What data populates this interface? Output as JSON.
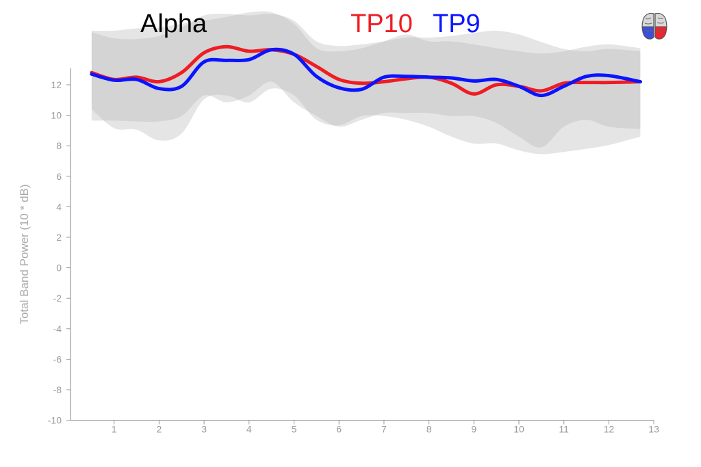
{
  "chart_data": {
    "type": "line",
    "title": "Alpha",
    "xlabel": "",
    "ylabel": "Total Band Power (10 * dB)",
    "xlim": [
      0,
      13
    ],
    "ylim": [
      -10,
      14
    ],
    "xticks": [
      1,
      2,
      3,
      4,
      5,
      6,
      7,
      8,
      9,
      10,
      11,
      12,
      13
    ],
    "yticks": [
      -10,
      -8,
      -6,
      -4,
      -2,
      0,
      2,
      4,
      6,
      8,
      10,
      12
    ],
    "grid": false,
    "legend_placement": "top-center",
    "x": [
      0.5,
      1,
      1.5,
      2,
      2.5,
      3,
      3.5,
      4,
      4.5,
      5,
      5.5,
      6,
      6.5,
      7,
      7.5,
      8,
      8.5,
      9,
      9.5,
      10,
      10.5,
      11,
      11.5,
      12,
      12.7
    ],
    "series": [
      {
        "name": "TP10",
        "color": "#ee1c24",
        "values": [
          12.8,
          12.35,
          12.5,
          12.2,
          12.8,
          14.1,
          14.5,
          14.2,
          14.3,
          14.0,
          13.2,
          12.35,
          12.1,
          12.2,
          12.4,
          12.5,
          12.1,
          11.4,
          12.0,
          11.9,
          11.6,
          12.1,
          12.15,
          12.15,
          12.2
        ],
        "band_upper": [
          15.45,
          15.05,
          15.0,
          15.2,
          15.75,
          16.55,
          16.65,
          16.55,
          16.65,
          16.2,
          14.85,
          14.55,
          14.65,
          14.85,
          15.1,
          15.1,
          15.2,
          15.4,
          15.55,
          15.3,
          14.8,
          14.35,
          14.2,
          14.35,
          14.2
        ],
        "band_lower": [
          10.4,
          9.15,
          9.05,
          8.35,
          8.8,
          11.05,
          11.3,
          10.85,
          11.75,
          11.3,
          9.7,
          9.35,
          9.95,
          9.95,
          9.7,
          9.25,
          8.6,
          8.15,
          8.15,
          7.7,
          7.45,
          7.6,
          7.8,
          8.05,
          8.6
        ]
      },
      {
        "name": "TP9",
        "color": "#0a14ff",
        "values": [
          12.7,
          12.3,
          12.35,
          11.75,
          11.9,
          13.5,
          13.6,
          13.65,
          14.3,
          14.0,
          12.55,
          11.8,
          11.7,
          12.5,
          12.55,
          12.5,
          12.45,
          12.25,
          12.35,
          11.9,
          11.3,
          11.9,
          12.55,
          12.6,
          12.2
        ],
        "band_upper": [
          15.55,
          15.55,
          15.7,
          15.75,
          16.0,
          16.2,
          16.45,
          16.75,
          16.75,
          16.0,
          14.4,
          14.2,
          14.4,
          14.85,
          15.3,
          14.85,
          14.85,
          14.65,
          14.4,
          14.2,
          14.05,
          14.2,
          14.5,
          14.65,
          14.4
        ],
        "band_lower": [
          9.65,
          9.65,
          9.6,
          9.6,
          9.95,
          11.3,
          10.85,
          11.3,
          12.2,
          10.85,
          9.95,
          9.25,
          9.7,
          10.15,
          10.15,
          10.15,
          9.95,
          9.95,
          9.5,
          8.6,
          7.9,
          9.25,
          9.7,
          9.25,
          9.1
        ]
      }
    ],
    "icon": "brain-icon"
  }
}
